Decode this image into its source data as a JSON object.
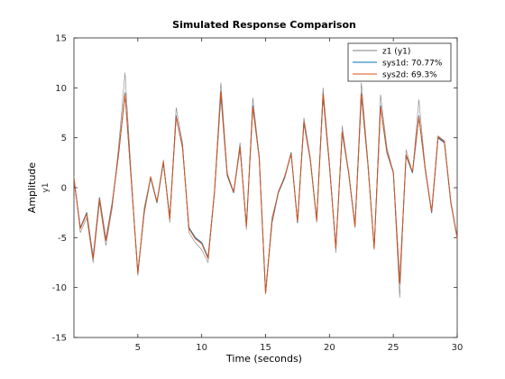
{
  "chart_data": {
    "type": "line",
    "title": "Simulated Response Comparison",
    "xlabel": "Time (seconds)",
    "ylabel": "Amplitude",
    "ylabel_sub": "y1",
    "xlim": [
      0,
      30
    ],
    "ylim": [
      -15,
      15
    ],
    "xticks": [
      5,
      10,
      15,
      20,
      25,
      30
    ],
    "yticks": [
      -15,
      -10,
      -5,
      0,
      5,
      10,
      15
    ],
    "grid": false,
    "legend_position": "top-right",
    "series": [
      {
        "name": "z1 (y1)",
        "color": "#808080",
        "x": [
          0,
          0.5,
          1,
          1.5,
          2,
          2.5,
          3,
          3.5,
          4,
          4.5,
          5,
          5.5,
          6,
          6.5,
          7,
          7.5,
          8,
          8.5,
          9,
          9.5,
          10,
          10.5,
          11,
          11.5,
          12,
          12.5,
          13,
          13.5,
          14,
          14.5,
          15,
          15.5,
          16,
          16.5,
          17,
          17.5,
          18,
          18.5,
          19,
          19.5,
          20,
          20.5,
          21,
          21.5,
          22,
          22.5,
          23,
          23.5,
          24,
          24.5,
          25,
          25.5,
          26,
          26.5,
          27,
          27.5,
          28,
          28.5,
          29,
          29.5,
          30
        ],
        "values": [
          1.2,
          -4.5,
          -3,
          -7.5,
          -1.5,
          -5.8,
          -2,
          4.2,
          11.5,
          1,
          -8.8,
          -2,
          1,
          -1.5,
          2.8,
          -3.5,
          8,
          4.5,
          -4.5,
          -5.5,
          -6.2,
          -7.5,
          -0.5,
          10.5,
          1.5,
          -0.5,
          4.5,
          -4.2,
          9,
          3.2,
          -10.5,
          -3,
          -0.5,
          1.2,
          3.5,
          -3.5,
          7,
          3,
          -3.5,
          10,
          2.5,
          -6.5,
          6.2,
          1.5,
          -4,
          10.5,
          2.8,
          -6.2,
          9.3,
          4,
          1.5,
          -11,
          3.8,
          1.5,
          8.8,
          2,
          -2.5,
          5.2,
          4.7,
          -1.5,
          -5
        ]
      },
      {
        "name": "sys1d: 70.77%",
        "color": "#0072BD",
        "x": [
          0,
          0.5,
          1,
          1.5,
          2,
          2.5,
          3,
          3.5,
          4,
          4.5,
          5,
          5.5,
          6,
          6.5,
          7,
          7.5,
          8,
          8.5,
          9,
          9.5,
          10,
          10.5,
          11,
          11.5,
          12,
          12.5,
          13,
          13.5,
          14,
          14.5,
          15,
          15.5,
          16,
          16.5,
          17,
          17.5,
          18,
          18.5,
          19,
          19.5,
          20,
          20.5,
          21,
          21.5,
          22,
          22.5,
          23,
          23.5,
          24,
          24.5,
          25,
          25.5,
          26,
          26.5,
          27,
          27.5,
          28,
          28.5,
          29,
          29.5,
          30
        ],
        "values": [
          0.8,
          -4,
          -2.5,
          -7,
          -1,
          -5.2,
          -1.5,
          3.5,
          9.5,
          0.5,
          -8.5,
          -2.5,
          1,
          -1.5,
          2.5,
          -3,
          7.2,
          4,
          -4,
          -5,
          -5.5,
          -7,
          -0.5,
          9.3,
          1.2,
          -0.5,
          4,
          -3.8,
          8.2,
          3,
          -10.5,
          -3.5,
          -0.5,
          1,
          3.5,
          -3.5,
          6.5,
          2.8,
          -3.2,
          9.2,
          2.2,
          -6,
          5.5,
          1.5,
          -3.8,
          9.3,
          2.5,
          -6,
          8.2,
          3.5,
          1.5,
          -9.5,
          3.2,
          1.5,
          7.2,
          1.8,
          -2.5,
          5,
          4.5,
          -1.5,
          -5
        ]
      },
      {
        "name": "sys2d: 69.3%",
        "color": "#D95319",
        "x": [
          0,
          0.5,
          1,
          1.5,
          2,
          2.5,
          3,
          3.5,
          4,
          4.5,
          5,
          5.5,
          6,
          6.5,
          7,
          7.5,
          8,
          8.5,
          9,
          9.5,
          10,
          10.5,
          11,
          11.5,
          12,
          12.5,
          13,
          13.5,
          14,
          14.5,
          15,
          15.5,
          16,
          16.5,
          17,
          17.5,
          18,
          18.5,
          19,
          19.5,
          20,
          20.5,
          21,
          21.5,
          22,
          22.5,
          23,
          23.5,
          24,
          24.5,
          25,
          25.5,
          26,
          26.5,
          27,
          27.5,
          28,
          28.5,
          29,
          29.5,
          30
        ],
        "values": [
          0.9,
          -4.1,
          -2.6,
          -7.1,
          -1.1,
          -5.3,
          -1.6,
          3.4,
          9.4,
          0.6,
          -8.6,
          -2.4,
          1.1,
          -1.4,
          2.6,
          -3.1,
          7.1,
          4.1,
          -4.1,
          -5.1,
          -5.6,
          -7.1,
          -0.4,
          9.6,
          1.3,
          -0.4,
          4.1,
          -3.9,
          8.1,
          3.1,
          -10.6,
          -3.4,
          -0.4,
          1.1,
          3.4,
          -3.4,
          6.6,
          2.9,
          -3.3,
          9.4,
          2.3,
          -6.1,
          5.6,
          1.6,
          -3.9,
          9.4,
          2.6,
          -6.1,
          8.1,
          3.6,
          1.6,
          -9.6,
          3.3,
          1.6,
          7.1,
          1.9,
          -2.4,
          5.1,
          4.6,
          -1.4,
          -5.1
        ]
      }
    ]
  }
}
